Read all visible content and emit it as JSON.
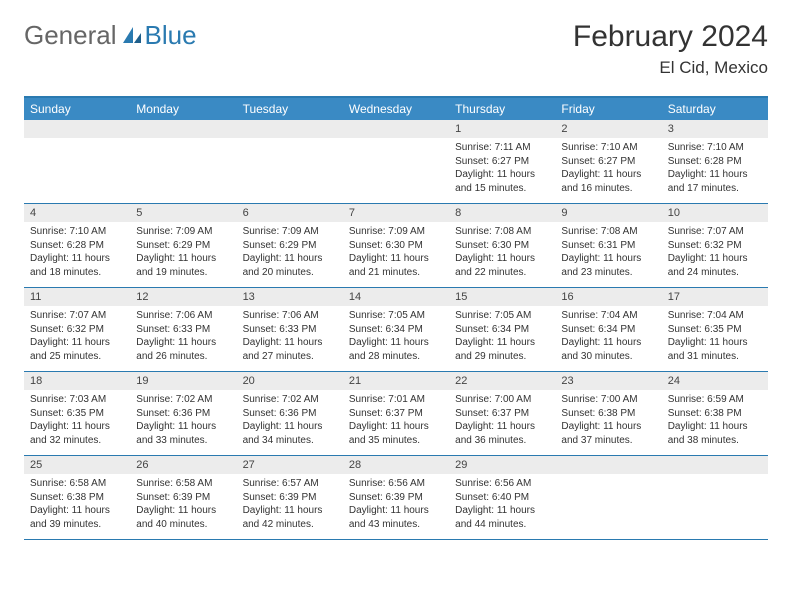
{
  "logo": {
    "part1": "General",
    "part2": "Blue"
  },
  "title": "February 2024",
  "location": "El Cid, Mexico",
  "colors": {
    "header_bg": "#3a8ac4",
    "border": "#2a7ab0",
    "num_row_bg": "#ececec",
    "text": "#333333"
  },
  "day_names": [
    "Sunday",
    "Monday",
    "Tuesday",
    "Wednesday",
    "Thursday",
    "Friday",
    "Saturday"
  ],
  "weeks": [
    [
      {
        "n": "",
        "l1": "",
        "l2": "",
        "l3": "",
        "l4": ""
      },
      {
        "n": "",
        "l1": "",
        "l2": "",
        "l3": "",
        "l4": ""
      },
      {
        "n": "",
        "l1": "",
        "l2": "",
        "l3": "",
        "l4": ""
      },
      {
        "n": "",
        "l1": "",
        "l2": "",
        "l3": "",
        "l4": ""
      },
      {
        "n": "1",
        "l1": "Sunrise: 7:11 AM",
        "l2": "Sunset: 6:27 PM",
        "l3": "Daylight: 11 hours",
        "l4": "and 15 minutes."
      },
      {
        "n": "2",
        "l1": "Sunrise: 7:10 AM",
        "l2": "Sunset: 6:27 PM",
        "l3": "Daylight: 11 hours",
        "l4": "and 16 minutes."
      },
      {
        "n": "3",
        "l1": "Sunrise: 7:10 AM",
        "l2": "Sunset: 6:28 PM",
        "l3": "Daylight: 11 hours",
        "l4": "and 17 minutes."
      }
    ],
    [
      {
        "n": "4",
        "l1": "Sunrise: 7:10 AM",
        "l2": "Sunset: 6:28 PM",
        "l3": "Daylight: 11 hours",
        "l4": "and 18 minutes."
      },
      {
        "n": "5",
        "l1": "Sunrise: 7:09 AM",
        "l2": "Sunset: 6:29 PM",
        "l3": "Daylight: 11 hours",
        "l4": "and 19 minutes."
      },
      {
        "n": "6",
        "l1": "Sunrise: 7:09 AM",
        "l2": "Sunset: 6:29 PM",
        "l3": "Daylight: 11 hours",
        "l4": "and 20 minutes."
      },
      {
        "n": "7",
        "l1": "Sunrise: 7:09 AM",
        "l2": "Sunset: 6:30 PM",
        "l3": "Daylight: 11 hours",
        "l4": "and 21 minutes."
      },
      {
        "n": "8",
        "l1": "Sunrise: 7:08 AM",
        "l2": "Sunset: 6:30 PM",
        "l3": "Daylight: 11 hours",
        "l4": "and 22 minutes."
      },
      {
        "n": "9",
        "l1": "Sunrise: 7:08 AM",
        "l2": "Sunset: 6:31 PM",
        "l3": "Daylight: 11 hours",
        "l4": "and 23 minutes."
      },
      {
        "n": "10",
        "l1": "Sunrise: 7:07 AM",
        "l2": "Sunset: 6:32 PM",
        "l3": "Daylight: 11 hours",
        "l4": "and 24 minutes."
      }
    ],
    [
      {
        "n": "11",
        "l1": "Sunrise: 7:07 AM",
        "l2": "Sunset: 6:32 PM",
        "l3": "Daylight: 11 hours",
        "l4": "and 25 minutes."
      },
      {
        "n": "12",
        "l1": "Sunrise: 7:06 AM",
        "l2": "Sunset: 6:33 PM",
        "l3": "Daylight: 11 hours",
        "l4": "and 26 minutes."
      },
      {
        "n": "13",
        "l1": "Sunrise: 7:06 AM",
        "l2": "Sunset: 6:33 PM",
        "l3": "Daylight: 11 hours",
        "l4": "and 27 minutes."
      },
      {
        "n": "14",
        "l1": "Sunrise: 7:05 AM",
        "l2": "Sunset: 6:34 PM",
        "l3": "Daylight: 11 hours",
        "l4": "and 28 minutes."
      },
      {
        "n": "15",
        "l1": "Sunrise: 7:05 AM",
        "l2": "Sunset: 6:34 PM",
        "l3": "Daylight: 11 hours",
        "l4": "and 29 minutes."
      },
      {
        "n": "16",
        "l1": "Sunrise: 7:04 AM",
        "l2": "Sunset: 6:34 PM",
        "l3": "Daylight: 11 hours",
        "l4": "and 30 minutes."
      },
      {
        "n": "17",
        "l1": "Sunrise: 7:04 AM",
        "l2": "Sunset: 6:35 PM",
        "l3": "Daylight: 11 hours",
        "l4": "and 31 minutes."
      }
    ],
    [
      {
        "n": "18",
        "l1": "Sunrise: 7:03 AM",
        "l2": "Sunset: 6:35 PM",
        "l3": "Daylight: 11 hours",
        "l4": "and 32 minutes."
      },
      {
        "n": "19",
        "l1": "Sunrise: 7:02 AM",
        "l2": "Sunset: 6:36 PM",
        "l3": "Daylight: 11 hours",
        "l4": "and 33 minutes."
      },
      {
        "n": "20",
        "l1": "Sunrise: 7:02 AM",
        "l2": "Sunset: 6:36 PM",
        "l3": "Daylight: 11 hours",
        "l4": "and 34 minutes."
      },
      {
        "n": "21",
        "l1": "Sunrise: 7:01 AM",
        "l2": "Sunset: 6:37 PM",
        "l3": "Daylight: 11 hours",
        "l4": "and 35 minutes."
      },
      {
        "n": "22",
        "l1": "Sunrise: 7:00 AM",
        "l2": "Sunset: 6:37 PM",
        "l3": "Daylight: 11 hours",
        "l4": "and 36 minutes."
      },
      {
        "n": "23",
        "l1": "Sunrise: 7:00 AM",
        "l2": "Sunset: 6:38 PM",
        "l3": "Daylight: 11 hours",
        "l4": "and 37 minutes."
      },
      {
        "n": "24",
        "l1": "Sunrise: 6:59 AM",
        "l2": "Sunset: 6:38 PM",
        "l3": "Daylight: 11 hours",
        "l4": "and 38 minutes."
      }
    ],
    [
      {
        "n": "25",
        "l1": "Sunrise: 6:58 AM",
        "l2": "Sunset: 6:38 PM",
        "l3": "Daylight: 11 hours",
        "l4": "and 39 minutes."
      },
      {
        "n": "26",
        "l1": "Sunrise: 6:58 AM",
        "l2": "Sunset: 6:39 PM",
        "l3": "Daylight: 11 hours",
        "l4": "and 40 minutes."
      },
      {
        "n": "27",
        "l1": "Sunrise: 6:57 AM",
        "l2": "Sunset: 6:39 PM",
        "l3": "Daylight: 11 hours",
        "l4": "and 42 minutes."
      },
      {
        "n": "28",
        "l1": "Sunrise: 6:56 AM",
        "l2": "Sunset: 6:39 PM",
        "l3": "Daylight: 11 hours",
        "l4": "and 43 minutes."
      },
      {
        "n": "29",
        "l1": "Sunrise: 6:56 AM",
        "l2": "Sunset: 6:40 PM",
        "l3": "Daylight: 11 hours",
        "l4": "and 44 minutes."
      },
      {
        "n": "",
        "l1": "",
        "l2": "",
        "l3": "",
        "l4": ""
      },
      {
        "n": "",
        "l1": "",
        "l2": "",
        "l3": "",
        "l4": ""
      }
    ]
  ]
}
